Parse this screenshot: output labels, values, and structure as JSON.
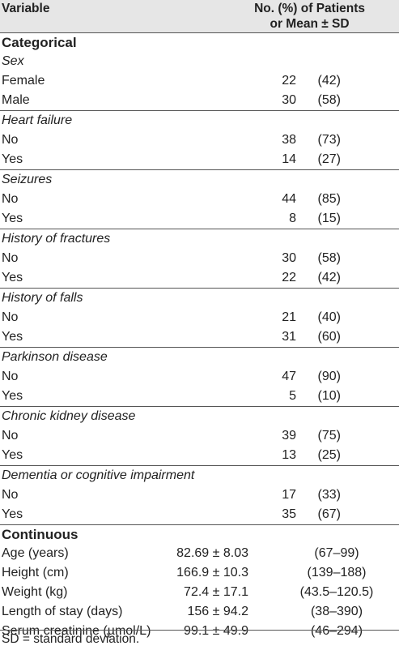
{
  "header": {
    "variable": "Variable",
    "stat_line1": "No. (%) of Patients",
    "stat_line2": "or Mean ± SD"
  },
  "categorical": {
    "title": "Categorical",
    "groups": [
      {
        "name": "Sex",
        "rows": [
          {
            "label": "Female",
            "n": "22",
            "pct": "(42)"
          },
          {
            "label": "Male",
            "n": "30",
            "pct": "(58)"
          }
        ]
      },
      {
        "name": "Heart failure",
        "rows": [
          {
            "label": "No",
            "n": "38",
            "pct": "(73)"
          },
          {
            "label": "Yes",
            "n": "14",
            "pct": "(27)"
          }
        ]
      },
      {
        "name": "Seizures",
        "rows": [
          {
            "label": "No",
            "n": "44",
            "pct": "(85)"
          },
          {
            "label": "Yes",
            "n": "8",
            "pct": "(15)"
          }
        ]
      },
      {
        "name": "History of fractures",
        "rows": [
          {
            "label": "No",
            "n": "30",
            "pct": "(58)"
          },
          {
            "label": "Yes",
            "n": "22",
            "pct": "(42)"
          }
        ]
      },
      {
        "name": "History of falls",
        "rows": [
          {
            "label": "No",
            "n": "21",
            "pct": "(40)"
          },
          {
            "label": "Yes",
            "n": "31",
            "pct": "(60)"
          }
        ]
      },
      {
        "name": "Parkinson disease",
        "rows": [
          {
            "label": "No",
            "n": "47",
            "pct": "(90)"
          },
          {
            "label": "Yes",
            "n": "5",
            "pct": "(10)"
          }
        ]
      },
      {
        "name": "Chronic kidney disease",
        "rows": [
          {
            "label": "No",
            "n": "39",
            "pct": "(75)"
          },
          {
            "label": "Yes",
            "n": "13",
            "pct": "(25)"
          }
        ]
      },
      {
        "name": "Dementia or cognitive impairment",
        "rows": [
          {
            "label": "No",
            "n": "17",
            "pct": "(33)"
          },
          {
            "label": "Yes",
            "n": "35",
            "pct": "(67)"
          }
        ]
      }
    ]
  },
  "continuous": {
    "title": "Continuous",
    "rows": [
      {
        "label": "Age (years)",
        "value": "82.69 ± 8.03",
        "range": "(67–99)"
      },
      {
        "label": "Height (cm)",
        "value": "166.9 ± 10.3",
        "range": "(139–188)"
      },
      {
        "label": "Weight (kg)",
        "value": "72.4 ± 17.1",
        "range": "(43.5–120.5)"
      },
      {
        "label": "Length of stay (days)",
        "value": "156 ± 94.2",
        "range": "(38–390)"
      },
      {
        "label": "Serum creatinine (µmol/L)",
        "value": "99.1 ± 49.9",
        "range": "(46–294)"
      }
    ]
  },
  "footer": {
    "note": "SD = standard deviation."
  }
}
